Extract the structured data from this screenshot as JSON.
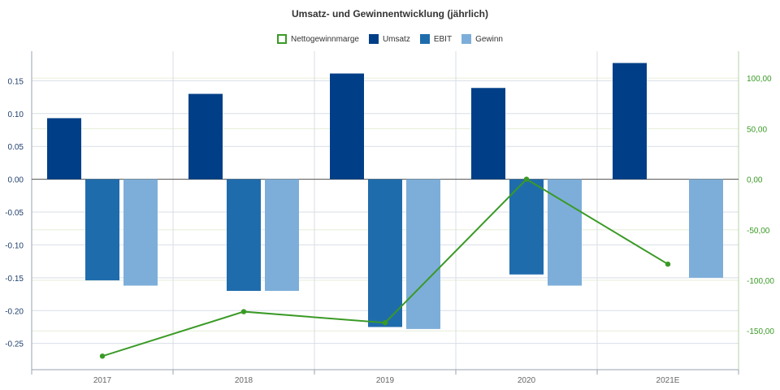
{
  "chart_data": {
    "type": "bar",
    "title": "Umsatz- und Gewinnentwicklung (jährlich)",
    "categories": [
      "2017",
      "2018",
      "2019",
      "2020",
      "2021E"
    ],
    "series": [
      {
        "name": "Umsatz",
        "type": "bar",
        "axis": "left",
        "color": "#003f87",
        "values": [
          0.093,
          0.13,
          0.161,
          0.139,
          0.177
        ]
      },
      {
        "name": "EBIT",
        "type": "bar",
        "axis": "left",
        "color": "#1f6cad",
        "values": [
          -0.154,
          -0.17,
          -0.225,
          -0.145,
          null
        ]
      },
      {
        "name": "Gewinn",
        "type": "bar",
        "axis": "left",
        "color": "#7daed9",
        "values": [
          -0.162,
          -0.17,
          -0.228,
          -0.162,
          -0.15
        ]
      },
      {
        "name": "Nettogewinnmarge",
        "type": "line",
        "axis": "right",
        "color": "#3a9a26",
        "values": [
          -175,
          -131,
          -142,
          0,
          -84
        ]
      }
    ],
    "legend": {
      "order": [
        "Nettogewinnmarge",
        "Umsatz",
        "EBIT",
        "Gewinn"
      ],
      "placement": "top-center"
    },
    "left_axis": {
      "ticks": [
        "0.15",
        "0.10",
        "0.05",
        "0.00",
        "-0.05",
        "-0.10",
        "-0.15",
        "-0.20",
        "-0.25"
      ],
      "tick_values": [
        0.15,
        0.1,
        0.05,
        0.0,
        -0.05,
        -0.1,
        -0.15,
        -0.2,
        -0.25
      ],
      "ylim": [
        -0.29,
        0.195
      ],
      "color": "#1f3f6e"
    },
    "right_axis": {
      "ticks": [
        "100,00",
        "50,00",
        "0,00",
        "-50,00",
        "-100,00",
        "-150,00"
      ],
      "tick_values": [
        100,
        50,
        0,
        -50,
        -100,
        -150
      ],
      "ylim": [
        -188.4,
        126.6
      ],
      "color": "#3a9a26"
    },
    "grid": true
  }
}
